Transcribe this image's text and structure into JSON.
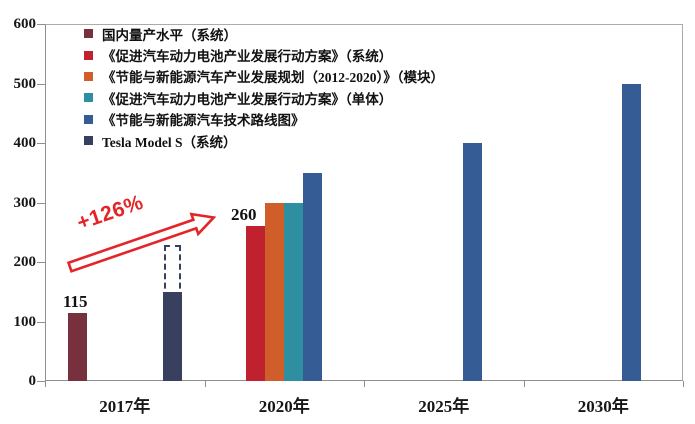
{
  "chart_data": {
    "type": "bar",
    "title": "",
    "categories": [
      "2017年",
      "2020年",
      "2025年",
      "2030年"
    ],
    "y_axis": {
      "min": 0,
      "max": 600,
      "tick_step": 100,
      "ticks": [
        0,
        100,
        200,
        300,
        400,
        500,
        600
      ]
    },
    "grid": false,
    "legend_position": "top-left",
    "series": [
      {
        "name": "国内量产水平（系统）",
        "color": "#77303d",
        "values": [
          115,
          null,
          null,
          null
        ]
      },
      {
        "name": "《促进汽车动力电池产业发展行动方案》（系统）",
        "color": "#c0212e",
        "values": [
          null,
          260,
          null,
          null
        ]
      },
      {
        "name": "《节能与新能源汽车产业发展规划（2012-2020）》（模块）",
        "color": "#d05e2a",
        "values": [
          null,
          300,
          null,
          null
        ]
      },
      {
        "name": "《促进汽车动力电池产业发展行动方案》（单体）",
        "color": "#2e8fa0",
        "values": [
          null,
          300,
          null,
          null
        ]
      },
      {
        "name": "《节能与新能源汽车技术路线图》",
        "color": "#355c95",
        "values": [
          null,
          350,
          400,
          500
        ]
      },
      {
        "name": "Tesla Model S（系统）",
        "color": "#39405f",
        "values": [
          150,
          null,
          null,
          null
        ]
      }
    ],
    "data_labels": [
      {
        "series": 0,
        "category": 0,
        "text": "115",
        "dx": -2
      },
      {
        "series": 1,
        "category": 1,
        "text": "260",
        "dx": -12
      }
    ],
    "annotations": {
      "growth_arrow": {
        "text": "+126%",
        "color": "#e42528",
        "from": {
          "category": "2017年",
          "value": 115
        },
        "to": {
          "category": "2020年",
          "value": 260
        }
      },
      "dashed_projection": {
        "series": "Tesla Model S（系统）",
        "series_index": 5,
        "category_index": 0,
        "from": 140,
        "to": 228,
        "style": "dashed-outline",
        "color": "#39405f"
      }
    }
  }
}
